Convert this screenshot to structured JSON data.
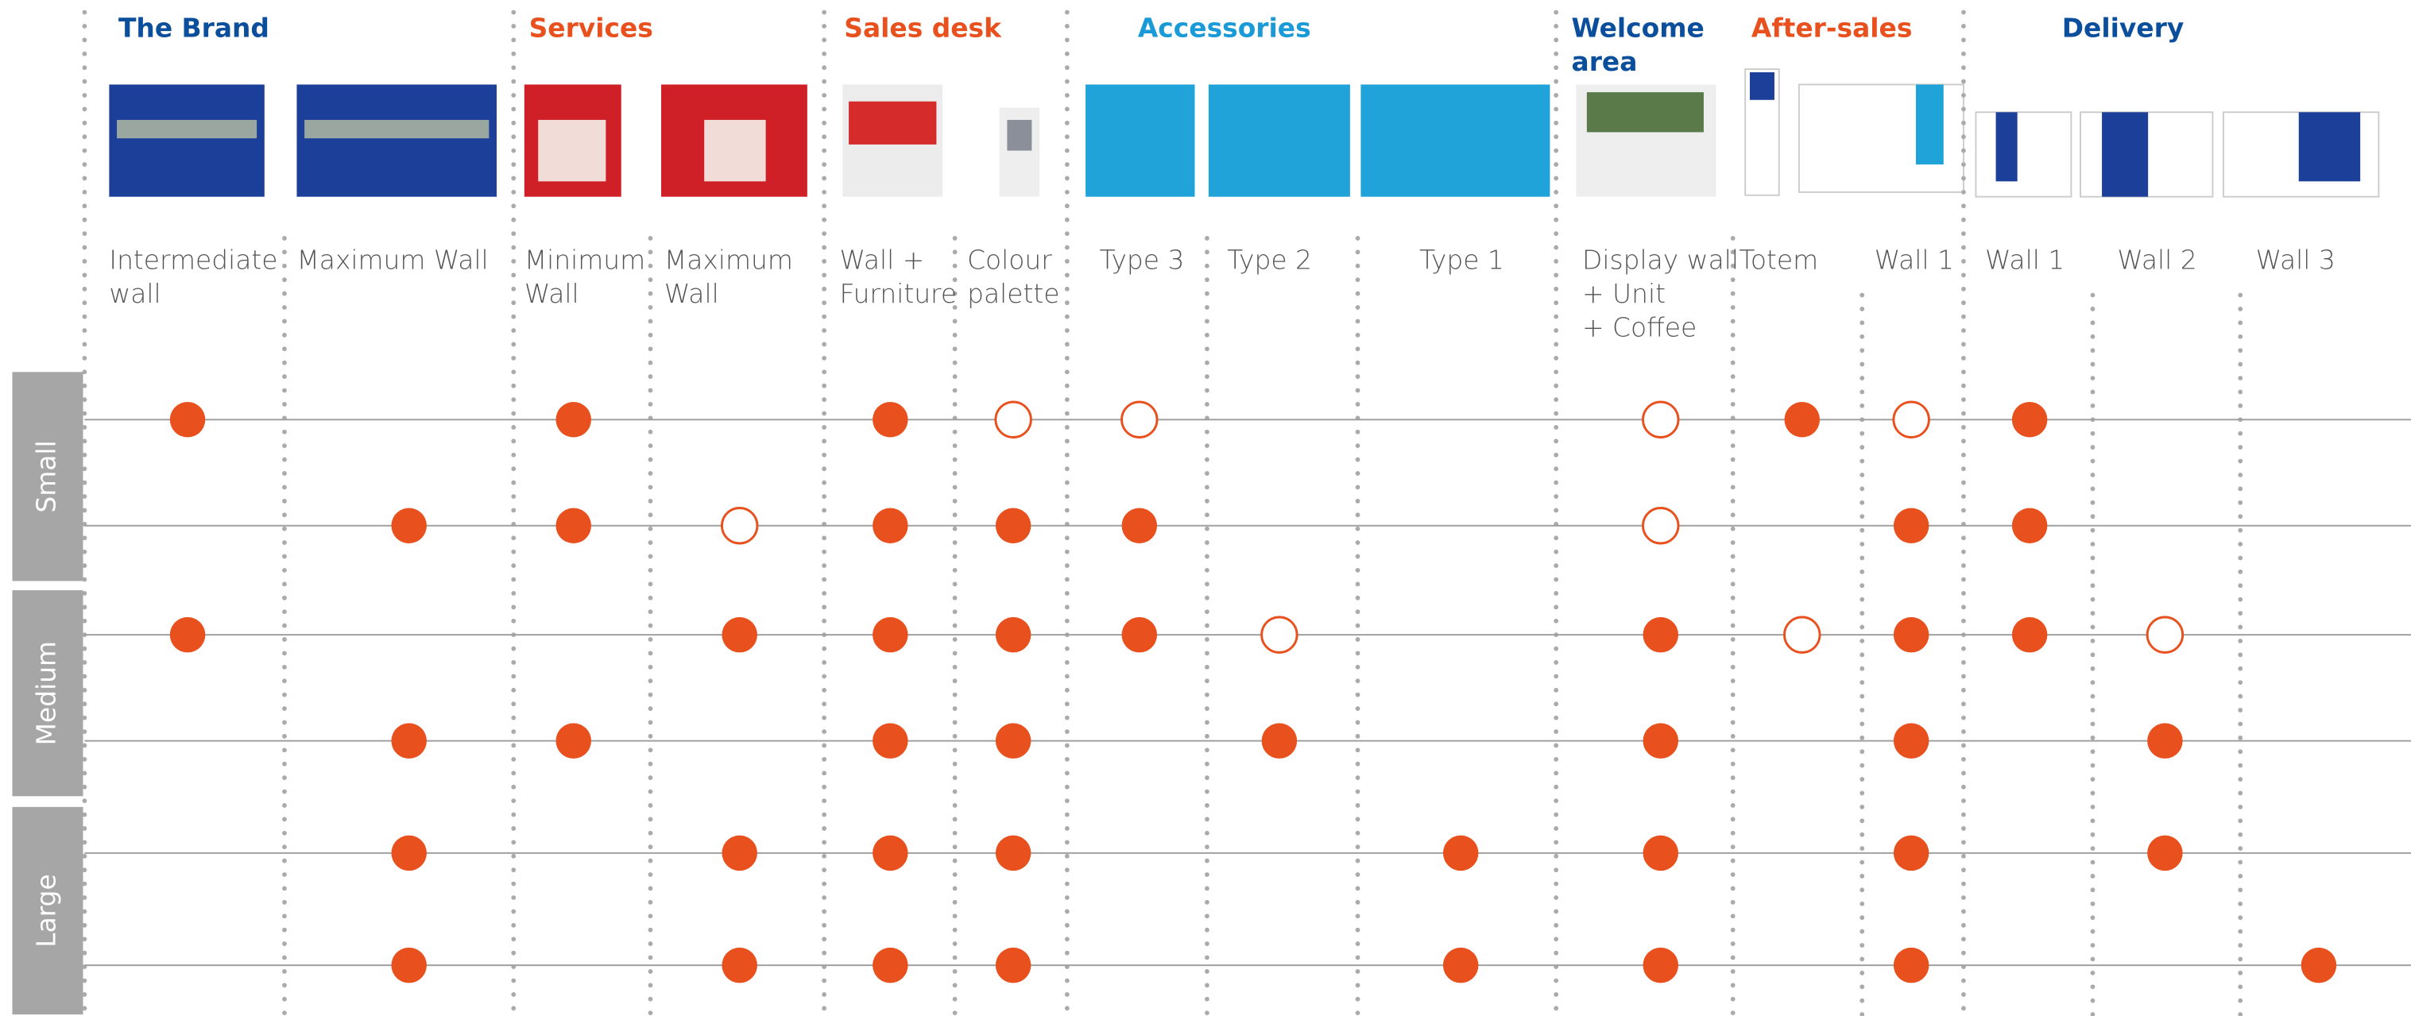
{
  "sections": [
    {
      "title": [
        "The Brand"
      ],
      "color": "#0b4f9c",
      "columns": [
        [
          "Intermediate",
          "wall"
        ],
        [
          "Maximum Wall"
        ]
      ]
    },
    {
      "title": [
        "Services"
      ],
      "color": "#e8501e",
      "columns": [
        [
          "Minimum",
          "Wall"
        ],
        [
          "Maximum",
          "Wall"
        ]
      ]
    },
    {
      "title": [
        "Sales desk"
      ],
      "color": "#e8501e",
      "columns": [
        [
          "Wall +",
          "Furniture"
        ],
        [
          "Colour",
          "palette"
        ]
      ]
    },
    {
      "title": [
        "Accessories"
      ],
      "color": "#1a9ad6",
      "columns": [
        [
          "Type 3"
        ],
        [
          "Type 2"
        ],
        [
          "Type 1"
        ]
      ]
    },
    {
      "title": [
        "Welcome",
        "area"
      ],
      "color": "#0b4f9c",
      "columns": [
        [
          "Display wall",
          "+ Unit",
          "+ Coffee"
        ]
      ]
    },
    {
      "title": [
        "After-sales"
      ],
      "color": "#e8501e",
      "columns": [
        [
          "Totem"
        ],
        [
          "Wall 1"
        ]
      ]
    },
    {
      "title": [
        "Delivery"
      ],
      "color": "#0b4f9c",
      "columns": [
        [
          "Wall 1"
        ],
        [
          "Wall 2"
        ],
        [
          "Wall 3"
        ]
      ]
    }
  ],
  "dot_color": "#e8501e",
  "row_groups": [
    {
      "label": "Small",
      "rows": [
        [
          "filled",
          null,
          "filled",
          null,
          "filled",
          "open",
          "open",
          null,
          null,
          "open",
          "filled",
          "open",
          "filled",
          null,
          null
        ],
        [
          null,
          "filled",
          "filled",
          "open",
          "filled",
          "filled",
          "filled",
          null,
          null,
          "open",
          null,
          "filled",
          "filled",
          null,
          null
        ]
      ]
    },
    {
      "label": "Medium",
      "rows": [
        [
          "filled",
          null,
          null,
          "filled",
          "filled",
          "filled",
          "filled",
          "open",
          null,
          "filled",
          "open",
          "filled",
          "filled",
          "open",
          null
        ],
        [
          null,
          "filled",
          "filled",
          null,
          "filled",
          "filled",
          null,
          "filled",
          null,
          "filled",
          null,
          "filled",
          null,
          "filled",
          null
        ]
      ]
    },
    {
      "label": "Large",
      "rows": [
        [
          null,
          "filled",
          null,
          "filled",
          "filled",
          "filled",
          null,
          null,
          "filled",
          "filled",
          null,
          "filled",
          null,
          "filled",
          null
        ],
        [
          null,
          "filled",
          null,
          "filled",
          "filled",
          "filled",
          null,
          null,
          "filled",
          "filled",
          null,
          "filled",
          null,
          null,
          "filled"
        ]
      ]
    }
  ]
}
